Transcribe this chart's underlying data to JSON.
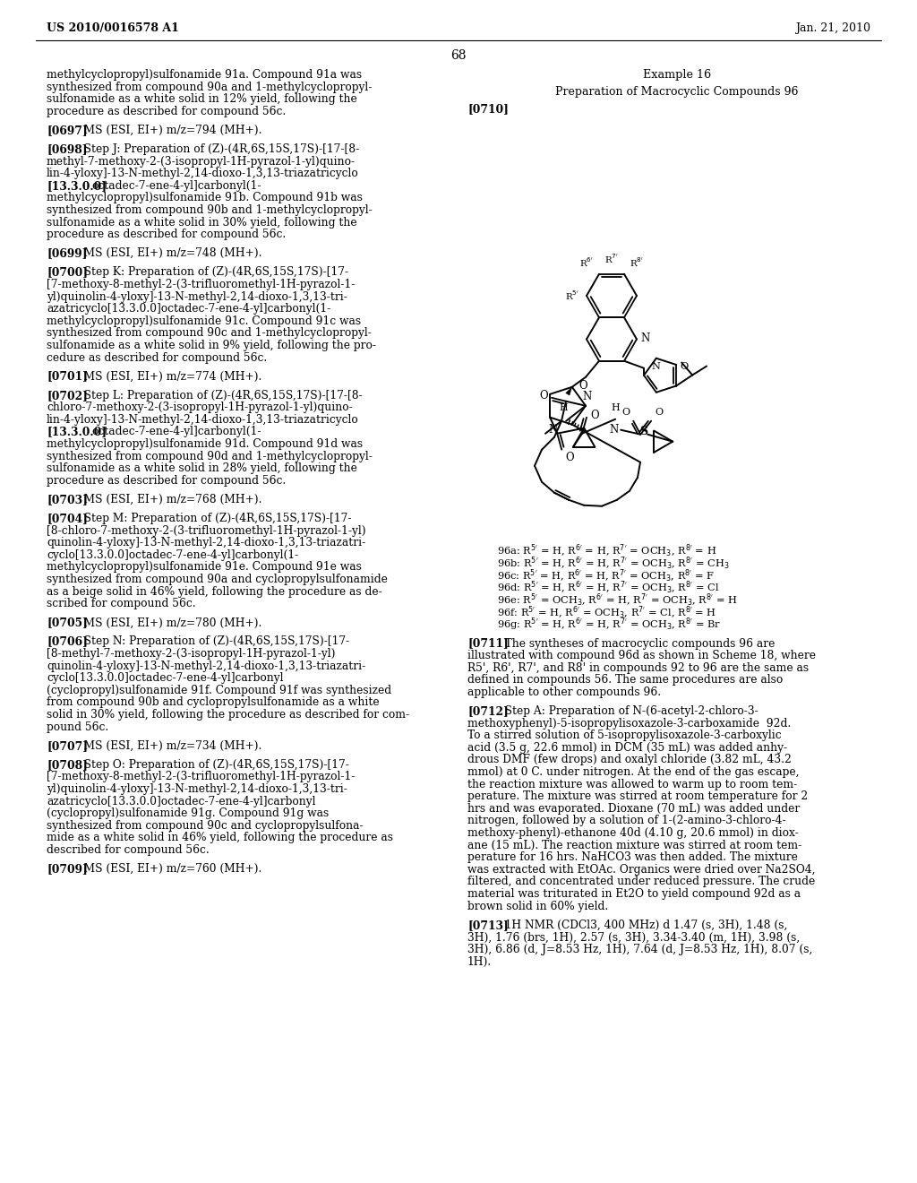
{
  "page_number": "68",
  "header_left": "US 2010/0016578 A1",
  "header_right": "Jan. 21, 2010",
  "left_column_lines": [
    "methylcyclopropyl)sulfonamide 91a. Compound 91a was",
    "synthesized from compound 90a and 1-methylcyclopropyl-",
    "sulfonamide as a white solid in 12% yield, following the",
    "procedure as described for compound 56c.",
    "",
    "[0697]   MS (ESI, EI+) m/z=794 (MH+).",
    "",
    "[0698]   Step J: Preparation of (Z)-(4R,6S,15S,17S)-[17-[8-",
    "methyl-7-methoxy-2-(3-isopropyl-1H-pyrazol-1-yl)quino-",
    "lin-4-yloxy]-13-N-methyl-2,14-dioxo-1,3,13-triazatricyclo",
    "[13.3.0.0]octadec-7-ene-4-yl]carbonyl(1-",
    "methylcyclopropyl)sulfonamide 91b. Compound 91b was",
    "synthesized from compound 90b and 1-methylcyclopropyl-",
    "sulfonamide as a white solid in 30% yield, following the",
    "procedure as described for compound 56c.",
    "",
    "[0699]   MS (ESI, EI+) m/z=748 (MH+).",
    "",
    "[0700]   Step K: Preparation of (Z)-(4R,6S,15S,17S)-[17-",
    "[7-methoxy-8-methyl-2-(3-trifluoromethyl-1H-pyrazol-1-",
    "yl)quinolin-4-yloxy]-13-N-methyl-2,14-dioxo-1,3,13-tri-",
    "azatricyclo[13.3.0.0]octadec-7-ene-4-yl]carbonyl(1-",
    "methylcyclopropyl)sulfonamide 91c. Compound 91c was",
    "synthesized from compound 90c and 1-methylcyclopropyl-",
    "sulfonamide as a white solid in 9% yield, following the pro-",
    "cedure as described for compound 56c.",
    "",
    "[0701]   MS (ESI, EI+) m/z=774 (MH+).",
    "",
    "[0702]   Step L: Preparation of (Z)-(4R,6S,15S,17S)-[17-[8-",
    "chloro-7-methoxy-2-(3-isopropyl-1H-pyrazol-1-yl)quino-",
    "lin-4-yloxy]-13-N-methyl-2,14-dioxo-1,3,13-triazatricyclo",
    "[13.3.0.0]octadec-7-ene-4-yl]carbonyl(1-",
    "methylcyclopropyl)sulfonamide 91d. Compound 91d was",
    "synthesized from compound 90d and 1-methylcyclopropyl-",
    "sulfonamide as a white solid in 28% yield, following the",
    "procedure as described for compound 56c.",
    "",
    "[0703]   MS (ESI, EI+) m/z=768 (MH+).",
    "",
    "[0704]   Step M: Preparation of (Z)-(4R,6S,15S,17S)-[17-",
    "[8-chloro-7-methoxy-2-(3-trifluoromethyl-1H-pyrazol-1-yl)",
    "quinolin-4-yloxy]-13-N-methyl-2,14-dioxo-1,3,13-triazatri-",
    "cyclo[13.3.0.0]octadec-7-ene-4-yl]carbonyl(1-",
    "methylcyclopropyl)sulfonamide 91e. Compound 91e was",
    "synthesized from compound 90a and cyclopropylsulfonamide",
    "as a beige solid in 46% yield, following the procedure as de-",
    "scribed for compound 56c.",
    "",
    "[0705]   MS (ESI, EI+) m/z=780 (MH+).",
    "",
    "[0706]   Step N: Preparation of (Z)-(4R,6S,15S,17S)-[17-",
    "[8-methyl-7-methoxy-2-(3-isopropyl-1H-pyrazol-1-yl)",
    "quinolin-4-yloxy]-13-N-methyl-2,14-dioxo-1,3,13-triazatri-",
    "cyclo[13.3.0.0]octadec-7-ene-4-yl]carbonyl",
    "(cyclopropyl)sulfonamide 91f. Compound 91f was synthesized",
    "from compound 90b and cyclopropylsulfonamide as a white",
    "solid in 30% yield, following the procedure as described for com-",
    "pound 56c.",
    "",
    "[0707]   MS (ESI, EI+) m/z=734 (MH+).",
    "",
    "[0708]   Step O: Preparation of (Z)-(4R,6S,15S,17S)-[17-",
    "[7-methoxy-8-methyl-2-(3-trifluoromethyl-1H-pyrazol-1-",
    "yl)quinolin-4-yloxy]-13-N-methyl-2,14-dioxo-1,3,13-tri-",
    "azatricyclo[13.3.0.0]octadec-7-ene-4-yl]carbonyl",
    "(cyclopropyl)sulfonamide 91g. Compound 91g was",
    "synthesized from compound 90c and cyclopropylsulfona-",
    "mide as a white solid in 46% yield, following the procedure as",
    "described for compound 56c.",
    "",
    "[0709]   MS (ESI, EI+) m/z=760 (MH+)."
  ],
  "right_col_bottom_lines": [
    "[0711]   The syntheses of macrocyclic compounds 96 are",
    "illustrated with compound 96d as shown in Scheme 18, where",
    "R5', R6', R7', and R8' in compounds 92 to 96 are the same as",
    "defined in compounds 56. The same procedures are also",
    "applicable to other compounds 96.",
    "",
    "[0712]   Step A: Preparation of N-(6-acetyl-2-chloro-3-",
    "methoxyphenyl)-5-isopropylisoxazole-3-carboxamide  92d.",
    "To a stirred solution of 5-isopropylisoxazole-3-carboxylic",
    "acid (3.5 g, 22.6 mmol) in DCM (35 mL) was added anhy-",
    "drous DMF (few drops) and oxalyl chloride (3.82 mL, 43.2",
    "mmol) at 0 C. under nitrogen. At the end of the gas escape,",
    "the reaction mixture was allowed to warm up to room tem-",
    "perature. The mixture was stirred at room temperature for 2",
    "hrs and was evaporated. Dioxane (70 mL) was added under",
    "nitrogen, followed by a solution of 1-(2-amino-3-chloro-4-",
    "methoxy-phenyl)-ethanone 40d (4.10 g, 20.6 mmol) in diox-",
    "ane (15 mL). The reaction mixture was stirred at room tem-",
    "perature for 16 hrs. NaHCO3 was then added. The mixture",
    "was extracted with EtOAc. Organics were dried over Na2SO4,",
    "filtered, and concentrated under reduced pressure. The crude",
    "material was triturated in Et2O to yield compound 92d as a",
    "brown solid in 60% yield.",
    "",
    "[0713]   1H NMR (CDCl3, 400 MHz) d 1.47 (s, 3H), 1.48 (s,",
    "3H), 1.76 (brs, 1H), 2.57 (s, 3H), 3.34-3.40 (m, 1H), 3.98 (s,",
    "3H), 6.86 (d, J=8.53 Hz, 1H), 7.64 (d, J=8.53 Hz, 1H), 8.07 (s,",
    "1H)."
  ],
  "compound_label_lines": [
    "96a: R5' = H, R6' = H, R7' = OCH3, R8' = H",
    "96b: R5' = H, R6' = H, R7' = OCH3, R8' = CH3",
    "96c: R5' = H, R6' = H, R7' = OCH3, R8' = F",
    "96d: R5' = H, R6' = H, R7' = OCH3, R8' = Cl",
    "96e: R5' = OCH3, R6' = H, R7' = OCH3, R8' = H",
    "96f: R5' = H, R6' = OCH3, R7' = Cl, R8' = H",
    "96g: R5' = H, R6' = H, R7' = OCH3, R8' = Br"
  ]
}
